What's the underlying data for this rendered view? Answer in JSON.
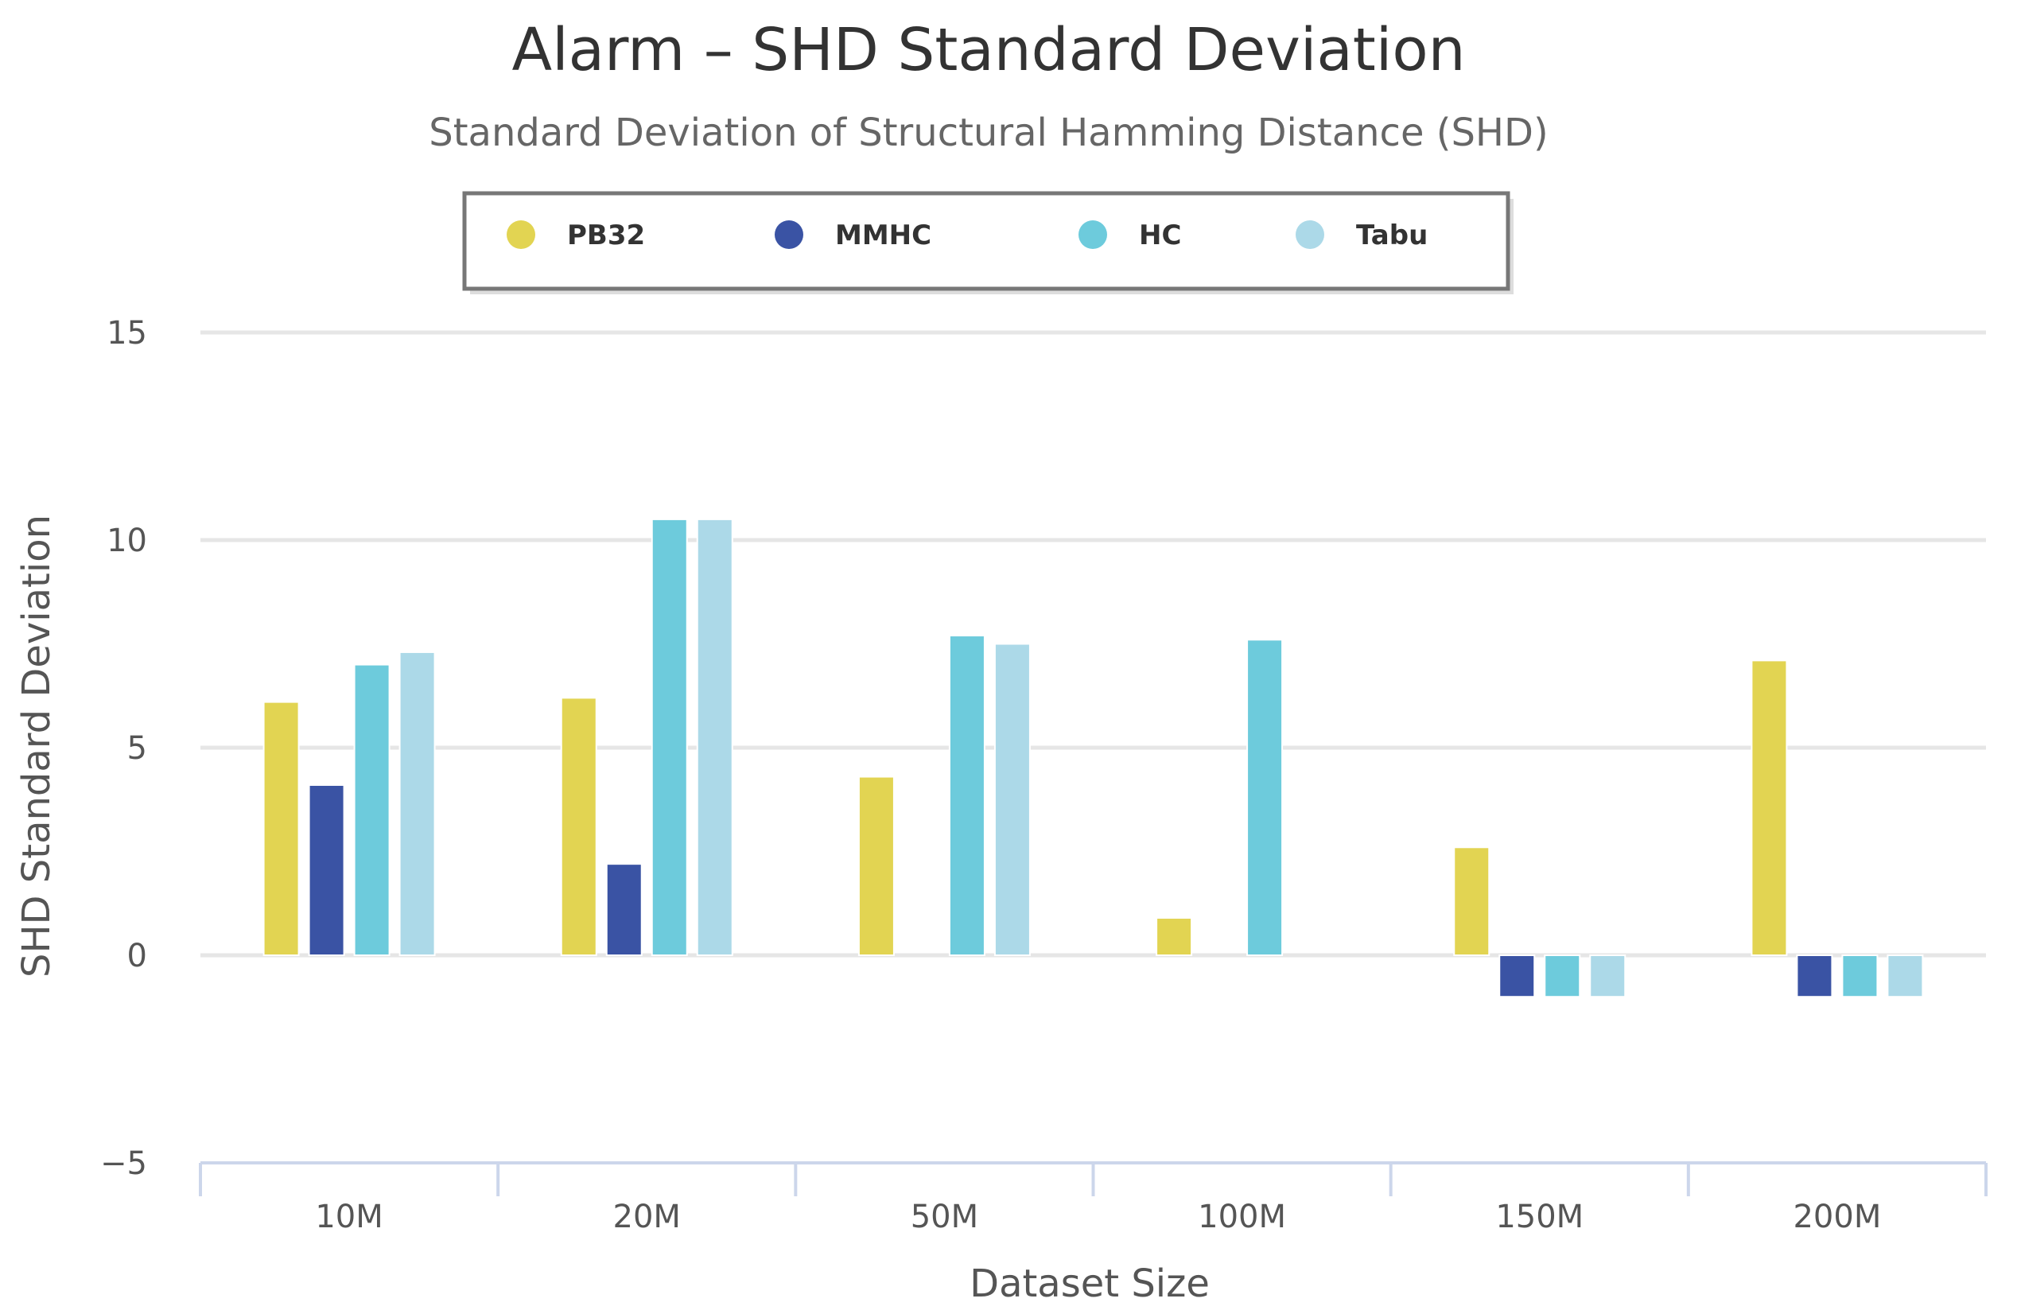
{
  "chart_data": {
    "type": "bar",
    "title": "Alarm – SHD Standard Deviation",
    "subtitle": "Standard Deviation of Structural Hamming Distance (SHD)",
    "xlabel": "Dataset Size",
    "ylabel": "SHD Standard Deviation",
    "ylim": [
      -5,
      15
    ],
    "yticks": [
      15,
      10,
      5,
      0,
      -5
    ],
    "ytick_labels": [
      "15",
      "10",
      "5",
      "0",
      "−5"
    ],
    "categories": [
      "10M",
      "20M",
      "50M",
      "100M",
      "150M",
      "200M"
    ],
    "legend_position": "top-center",
    "series": [
      {
        "name": "PB32",
        "color": "#e2d452",
        "values": [
          6.1,
          6.2,
          4.3,
          0.9,
          2.6,
          7.1
        ]
      },
      {
        "name": "MMHC",
        "color": "#3a53a4",
        "values": [
          4.1,
          2.2,
          null,
          null,
          -1,
          -1
        ]
      },
      {
        "name": "HC",
        "color": "#6dcbdc",
        "values": [
          7.0,
          10.5,
          7.7,
          7.6,
          -1,
          -1
        ]
      },
      {
        "name": "Tabu",
        "color": "#acd9e8",
        "values": [
          7.3,
          10.5,
          7.5,
          null,
          -1,
          -1
        ]
      }
    ]
  }
}
